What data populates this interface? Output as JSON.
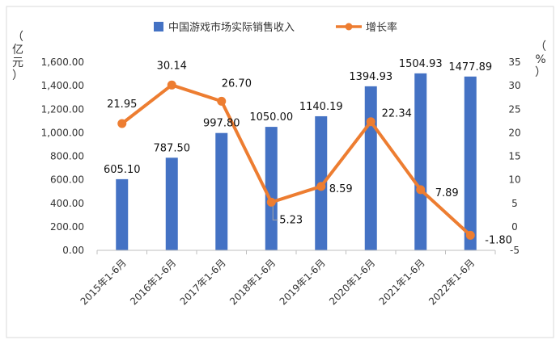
{
  "chart_data": {
    "type": "bar+line",
    "categories": [
      "2015年1-6月",
      "2016年1-6月",
      "2017年1-6月",
      "2018年1-6月",
      "2019年1-6月",
      "2020年1-6月",
      "2021年1-6月",
      "2022年1-6月"
    ],
    "series": [
      {
        "name": "中国游戏市场实际销售收入",
        "type": "bar",
        "axis": "left",
        "color": "#4472C4",
        "values": [
          605.1,
          787.5,
          997.8,
          1050.0,
          1140.19,
          1394.93,
          1504.93,
          1477.89
        ],
        "labels": [
          "605.10",
          "787.50",
          "997.80",
          "1050.00",
          "1140.19",
          "1394.93",
          "1504.93",
          "1477.89"
        ]
      },
      {
        "name": "增长率",
        "type": "line",
        "axis": "right",
        "color": "#ED7D31",
        "values": [
          21.95,
          30.14,
          26.7,
          5.23,
          8.59,
          22.34,
          7.89,
          -1.8
        ],
        "labels": [
          "21.95",
          "30.14",
          "26.70",
          "5.23",
          "8.59",
          "22.34",
          "7.89",
          "-1.80"
        ]
      }
    ],
    "y_left": {
      "label_chars": [
        "（",
        "亿",
        "元",
        "）"
      ],
      "ylim": [
        0,
        1600
      ],
      "ticks": [
        "0.00",
        "200.00",
        "400.00",
        "600.00",
        "800.00",
        "1,000.00",
        "1,200.00",
        "1,400.00",
        "1,600.00"
      ],
      "tick_values": [
        0,
        200,
        400,
        600,
        800,
        1000,
        1200,
        1400,
        1600
      ]
    },
    "y_right": {
      "label_chars": [
        "（",
        "%",
        "）"
      ],
      "ylim": [
        -5,
        35
      ],
      "ticks": [
        "-5",
        "0",
        "5",
        "10",
        "15",
        "20",
        "25",
        "30",
        "35"
      ],
      "tick_values": [
        -5,
        0,
        5,
        10,
        15,
        20,
        25,
        30,
        35
      ]
    },
    "legend_position": "top-center",
    "grid": false
  }
}
